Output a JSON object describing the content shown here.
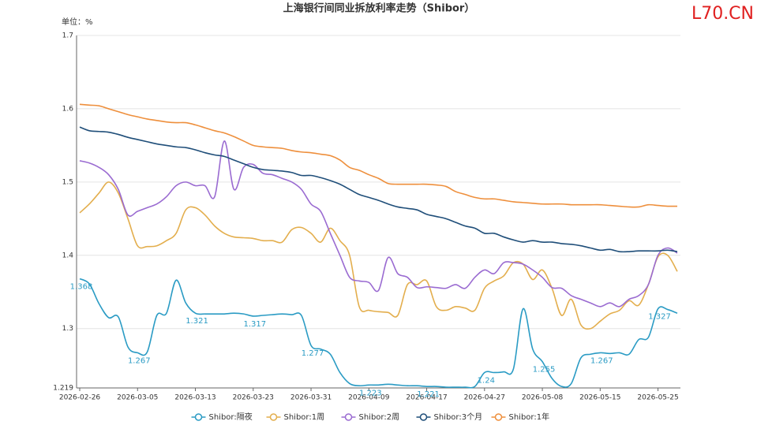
{
  "chart_data": {
    "type": "line",
    "title": "上海银行间同业拆放利率走势（Shibor）",
    "unit_label": "单位：%",
    "watermark": "L70.CN",
    "categories": [
      "2026-02-26",
      null,
      null,
      null,
      null,
      null,
      "2026-03-05",
      null,
      null,
      null,
      null,
      null,
      "2026-03-13",
      null,
      null,
      null,
      null,
      null,
      "2026-03-23",
      null,
      null,
      null,
      null,
      null,
      "2026-03-31",
      null,
      null,
      null,
      null,
      null,
      "2026-04-09",
      null,
      null,
      null,
      null,
      null,
      "2026-04-17",
      null,
      null,
      null,
      null,
      null,
      "2026-04-27",
      null,
      null,
      null,
      null,
      null,
      "2026-05-08",
      null,
      null,
      null,
      null,
      null,
      "2026-05-15",
      null,
      null,
      null,
      null,
      null,
      "2026-05-25",
      null,
      null
    ],
    "ylim": [
      1.219,
      1.7
    ],
    "yticks": [
      1.219,
      1.3,
      1.4,
      1.5,
      1.6,
      1.7
    ],
    "grid": true,
    "legend": "bottom",
    "data_label_interval": 6,
    "series": [
      {
        "name": "Shibor:隔夜",
        "color": "#2a9bc4",
        "data_labels": true,
        "values": [
          1.368,
          1.361,
          1.334,
          1.315,
          1.316,
          1.275,
          1.267,
          1.268,
          1.318,
          1.321,
          1.366,
          1.335,
          1.321,
          1.32,
          1.32,
          1.32,
          1.321,
          1.32,
          1.317,
          1.318,
          1.319,
          1.32,
          1.319,
          1.318,
          1.277,
          1.272,
          1.265,
          1.24,
          1.225,
          1.222,
          1.223,
          1.223,
          1.224,
          1.223,
          1.222,
          1.222,
          1.221,
          1.221,
          1.22,
          1.22,
          1.22,
          1.221,
          1.24,
          1.24,
          1.241,
          1.245,
          1.327,
          1.272,
          1.255,
          1.232,
          1.221,
          1.225,
          1.26,
          1.265,
          1.267,
          1.266,
          1.267,
          1.265,
          1.285,
          1.288,
          1.327,
          1.326,
          1.321
        ]
      },
      {
        "name": "Shibor:1周",
        "color": "#e3ae4d",
        "values": [
          1.458,
          1.47,
          1.485,
          1.5,
          1.485,
          1.45,
          1.413,
          1.412,
          1.413,
          1.42,
          1.43,
          1.462,
          1.465,
          1.455,
          1.44,
          1.43,
          1.425,
          1.424,
          1.423,
          1.42,
          1.42,
          1.418,
          1.435,
          1.438,
          1.43,
          1.418,
          1.437,
          1.42,
          1.4,
          1.33,
          1.325,
          1.323,
          1.322,
          1.318,
          1.36,
          1.36,
          1.365,
          1.33,
          1.325,
          1.33,
          1.328,
          1.325,
          1.355,
          1.365,
          1.372,
          1.39,
          1.388,
          1.367,
          1.38,
          1.355,
          1.318,
          1.34,
          1.305,
          1.3,
          1.31,
          1.32,
          1.325,
          1.338,
          1.332,
          1.36,
          1.398,
          1.4,
          1.378
        ]
      },
      {
        "name": "Shibor:2周",
        "color": "#9a6bd1",
        "values": [
          1.529,
          1.526,
          1.52,
          1.51,
          1.49,
          1.455,
          1.46,
          1.465,
          1.47,
          1.48,
          1.495,
          1.5,
          1.495,
          1.495,
          1.48,
          1.556,
          1.49,
          1.52,
          1.524,
          1.512,
          1.51,
          1.505,
          1.5,
          1.49,
          1.47,
          1.46,
          1.43,
          1.4,
          1.37,
          1.365,
          1.363,
          1.352,
          1.397,
          1.375,
          1.37,
          1.356,
          1.357,
          1.356,
          1.355,
          1.36,
          1.355,
          1.37,
          1.38,
          1.375,
          1.39,
          1.39,
          1.388,
          1.38,
          1.37,
          1.356,
          1.355,
          1.345,
          1.34,
          1.335,
          1.33,
          1.335,
          1.33,
          1.34,
          1.345,
          1.36,
          1.4,
          1.41,
          1.403
        ]
      },
      {
        "name": "Shibor:3个月",
        "color": "#1f4e79",
        "values": [
          1.575,
          1.57,
          1.569,
          1.568,
          1.565,
          1.561,
          1.558,
          1.555,
          1.552,
          1.55,
          1.548,
          1.547,
          1.544,
          1.54,
          1.537,
          1.535,
          1.53,
          1.525,
          1.52,
          1.517,
          1.516,
          1.515,
          1.513,
          1.509,
          1.509,
          1.506,
          1.502,
          1.497,
          1.49,
          1.483,
          1.479,
          1.475,
          1.47,
          1.466,
          1.464,
          1.462,
          1.456,
          1.453,
          1.45,
          1.445,
          1.44,
          1.437,
          1.43,
          1.43,
          1.425,
          1.421,
          1.418,
          1.42,
          1.418,
          1.418,
          1.416,
          1.415,
          1.413,
          1.41,
          1.407,
          1.408,
          1.405,
          1.405,
          1.406,
          1.406,
          1.406,
          1.407,
          1.405
        ]
      },
      {
        "name": "Shibor:1年",
        "color": "#ee8f3c",
        "values": [
          1.606,
          1.605,
          1.604,
          1.6,
          1.596,
          1.592,
          1.589,
          1.586,
          1.584,
          1.582,
          1.581,
          1.581,
          1.578,
          1.574,
          1.57,
          1.567,
          1.562,
          1.556,
          1.55,
          1.548,
          1.547,
          1.546,
          1.543,
          1.541,
          1.54,
          1.538,
          1.536,
          1.53,
          1.52,
          1.516,
          1.51,
          1.505,
          1.498,
          1.497,
          1.497,
          1.497,
          1.497,
          1.496,
          1.494,
          1.487,
          1.483,
          1.479,
          1.477,
          1.477,
          1.475,
          1.473,
          1.472,
          1.471,
          1.47,
          1.47,
          1.47,
          1.469,
          1.469,
          1.469,
          1.469,
          1.468,
          1.467,
          1.466,
          1.466,
          1.469,
          1.468,
          1.467,
          1.467
        ]
      }
    ]
  }
}
